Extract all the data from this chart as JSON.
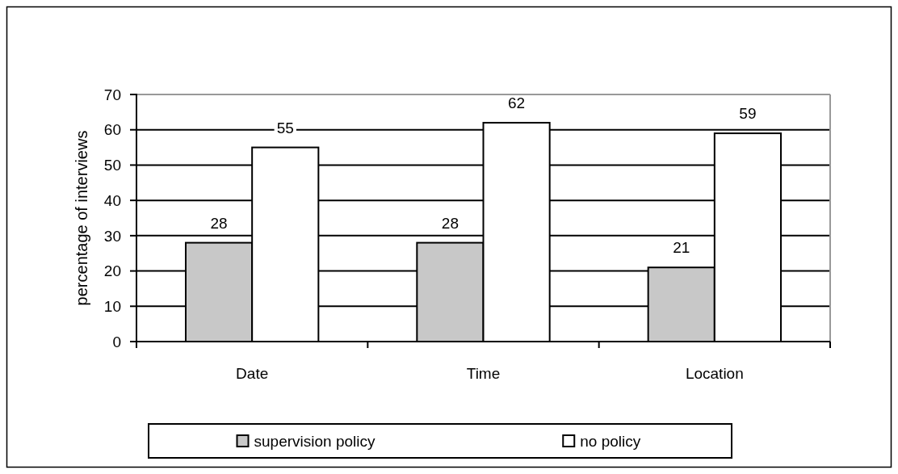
{
  "chart_data": {
    "type": "bar",
    "ylabel": "percentage of interviews",
    "categories": [
      "Date",
      "Time",
      "Location"
    ],
    "series": [
      {
        "name": "supervision policy",
        "color": "#c8c8c8",
        "values": [
          28,
          28,
          21
        ]
      },
      {
        "name": "no policy",
        "color": "#ffffff",
        "values": [
          55,
          62,
          59
        ]
      }
    ],
    "ylim": [
      0,
      70
    ],
    "yticks": [
      0,
      10,
      20,
      30,
      40,
      50,
      60,
      70
    ],
    "grid": "y",
    "data_labels": true,
    "legend": "bottom"
  }
}
